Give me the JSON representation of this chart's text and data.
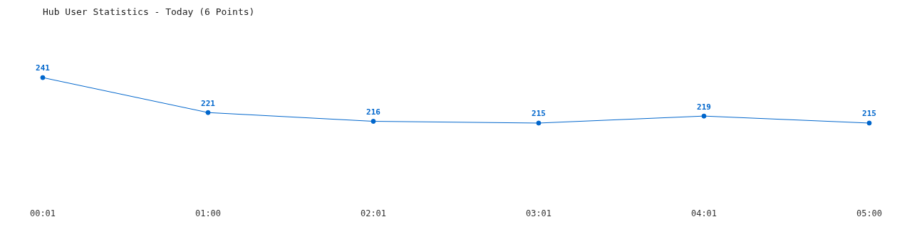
{
  "chart_data": {
    "type": "line",
    "title": "Hub User Statistics - Today (6 Points)",
    "categories": [
      "00:01",
      "01:00",
      "02:01",
      "03:01",
      "04:01",
      "05:00"
    ],
    "series": [
      {
        "color": "#0066cc",
        "values": [
          241,
          221,
          216,
          215,
          219,
          215
        ]
      }
    ],
    "data_labels": true,
    "marker": "circle",
    "line_style": "solid",
    "grid": false,
    "legend": false
  }
}
